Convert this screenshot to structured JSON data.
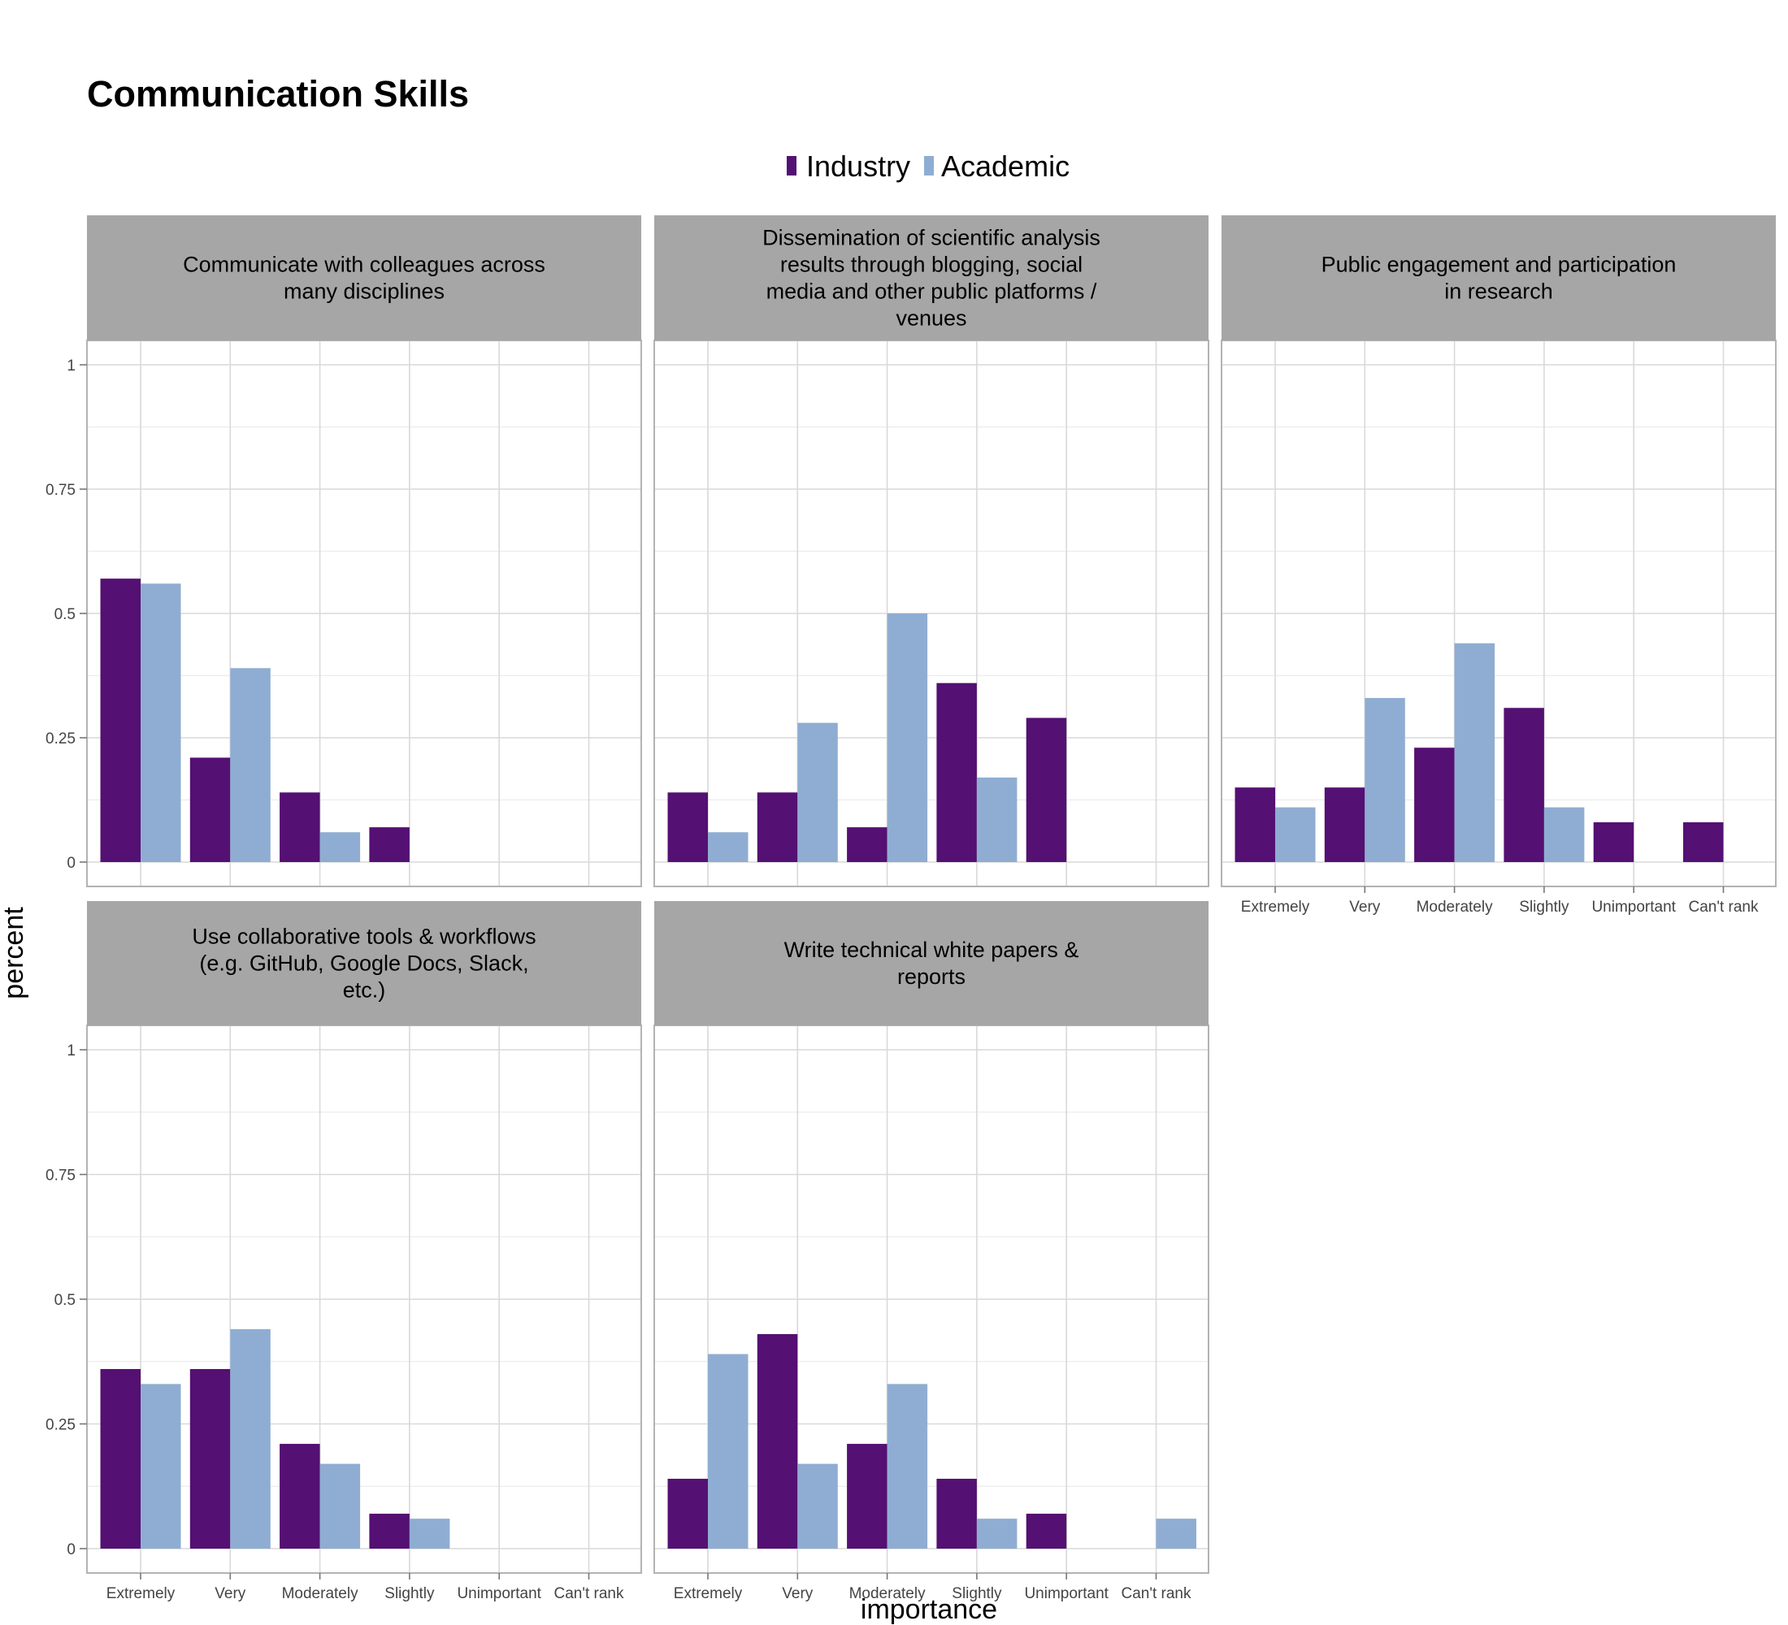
{
  "chart_data": {
    "type": "bar",
    "title": "Communication Skills",
    "xlabel": "importance",
    "ylabel": "percent",
    "ylim": [
      0,
      1
    ],
    "yticks": [
      "0",
      "0.25",
      "0.5",
      "0.75",
      "1"
    ],
    "categories": [
      "Extremely",
      "Very",
      "Moderately",
      "Slightly",
      "Unimportant",
      "Can't rank"
    ],
    "legend": {
      "position": "top",
      "entries": [
        {
          "name": "Industry",
          "color": "#541072"
        },
        {
          "name": "Academic",
          "color": "#8FADD2"
        }
      ]
    },
    "panels": [
      {
        "strip_lines": [
          "Communicate with colleagues across",
          "many disciplines"
        ],
        "series": [
          {
            "name": "Industry",
            "values": [
              0.57,
              0.21,
              0.14,
              0.07,
              null,
              null
            ]
          },
          {
            "name": "Academic",
            "values": [
              0.56,
              0.39,
              0.06,
              null,
              null,
              null
            ]
          }
        ]
      },
      {
        "strip_lines": [
          "Dissemination of scientific analysis",
          "results through blogging, social",
          "media and other public platforms /",
          "venues"
        ],
        "series": [
          {
            "name": "Industry",
            "values": [
              0.14,
              0.14,
              0.07,
              0.36,
              0.29,
              null
            ]
          },
          {
            "name": "Academic",
            "values": [
              0.06,
              0.28,
              0.5,
              0.17,
              null,
              null
            ]
          }
        ]
      },
      {
        "strip_lines": [
          "Public engagement and participation",
          "in research"
        ],
        "series": [
          {
            "name": "Industry",
            "values": [
              0.15,
              0.15,
              0.23,
              0.31,
              0.08,
              0.08
            ]
          },
          {
            "name": "Academic",
            "values": [
              0.11,
              0.33,
              0.44,
              0.11,
              null,
              null
            ]
          }
        ]
      },
      {
        "strip_lines": [
          "Use collaborative tools & workflows",
          "(e.g. GitHub, Google Docs, Slack,",
          "etc.)"
        ],
        "series": [
          {
            "name": "Industry",
            "values": [
              0.36,
              0.36,
              0.21,
              0.07,
              null,
              null
            ]
          },
          {
            "name": "Academic",
            "values": [
              0.33,
              0.44,
              0.17,
              0.06,
              null,
              null
            ]
          }
        ]
      },
      {
        "strip_lines": [
          "Write technical white papers &",
          "reports"
        ],
        "series": [
          {
            "name": "Industry",
            "values": [
              0.14,
              0.43,
              0.21,
              0.14,
              0.07,
              null
            ]
          },
          {
            "name": "Academic",
            "values": [
              0.39,
              0.17,
              0.33,
              0.06,
              null,
              0.06
            ]
          }
        ]
      }
    ]
  }
}
